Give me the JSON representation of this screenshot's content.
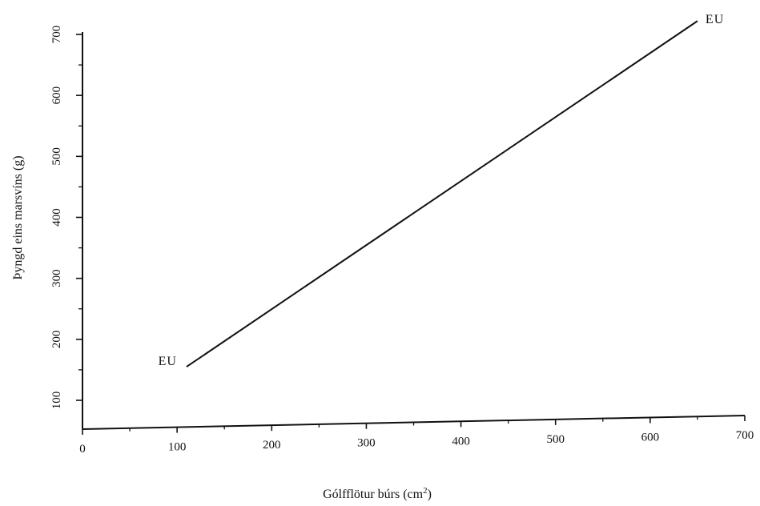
{
  "chart_data": {
    "type": "line",
    "title": "",
    "xlabel": "Gólfflötur búrs (cm²)",
    "xlabel_main": "Gólfflötur búrs (cm",
    "xlabel_sup": "2",
    "xlabel_end": ")",
    "ylabel": "Þyngd eins marsvíns (g)",
    "xlim": [
      0,
      700
    ],
    "ylim": [
      50,
      700
    ],
    "x_ticks": [
      0,
      100,
      200,
      300,
      400,
      500,
      600,
      700
    ],
    "y_ticks": [
      100,
      200,
      300,
      400,
      500,
      600,
      700
    ],
    "x_tick_labels": [
      "0",
      "100",
      "200",
      "300",
      "400",
      "500",
      "600",
      "700"
    ],
    "y_tick_labels": [
      "100",
      "200",
      "300",
      "400",
      "500",
      "600",
      "700"
    ],
    "grid": false,
    "series": [
      {
        "x": [
          110,
          650
        ],
        "y": [
          155,
          722
        ],
        "color": "#111111"
      }
    ],
    "annotations": [
      {
        "text": "EU",
        "x": 110,
        "y": 155,
        "anchor": "start-left"
      },
      {
        "text": "EU",
        "x": 650,
        "y": 722,
        "anchor": "end-right"
      }
    ]
  }
}
